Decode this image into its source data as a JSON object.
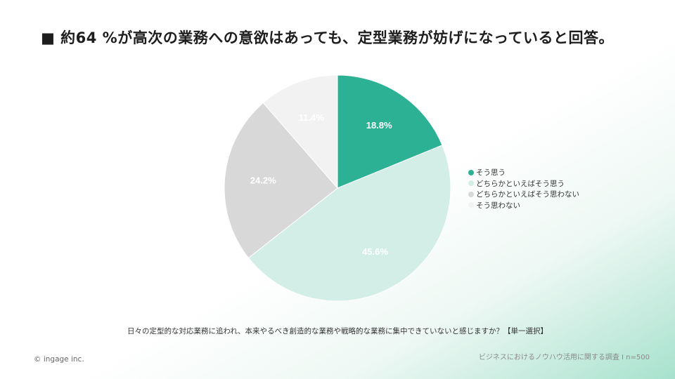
{
  "header": {
    "title": "■ 約64 %が高次の業務への意欲はあっても、定型業務が妨げになっていると回答。"
  },
  "chart_data": {
    "type": "pie",
    "title": "",
    "categories": [
      "そう思う",
      "どちらかといえばそう思う",
      "どちらかといえばそう思わない",
      "そう思わない"
    ],
    "values": [
      18.8,
      45.6,
      24.2,
      11.4
    ],
    "labels": [
      "18.8%",
      "45.6%",
      "24.2%",
      "11.4%"
    ],
    "colors": [
      "#2db195",
      "#d3eee7",
      "#d8d8d8",
      "#f2f2f2"
    ],
    "label_colors": [
      "#ffffff",
      "#ffffff",
      "#ffffff",
      "#ffffff"
    ],
    "start": "12 o'clock, clockwise",
    "legend_position": "right"
  },
  "footer": {
    "question": "日々の定型的な対応業務に追われ、本来やるべき創造的な業務や戦略的な業務に集中できていないと感じますか？【単一選択】",
    "copyright": "© ingage inc.",
    "source": "ビジネスにおけるノウハウ活用に関する調査 I n=500"
  }
}
